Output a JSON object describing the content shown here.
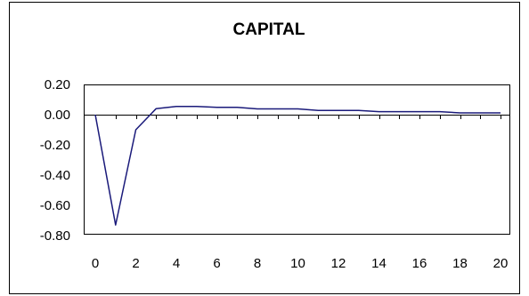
{
  "chart_data": {
    "type": "line",
    "title": "CAPITAL",
    "xlabel": "",
    "ylabel": "",
    "x": [
      0,
      1,
      2,
      3,
      4,
      5,
      6,
      7,
      8,
      9,
      10,
      11,
      12,
      13,
      14,
      15,
      16,
      17,
      18,
      19,
      20
    ],
    "series": [
      {
        "values": [
          0.0,
          -0.73,
          -0.1,
          0.04,
          0.055,
          0.055,
          0.048,
          0.048,
          0.038,
          0.038,
          0.038,
          0.028,
          0.028,
          0.028,
          0.02,
          0.02,
          0.02,
          0.02,
          0.012,
          0.012,
          0.012
        ],
        "color": "#1a1a7a"
      }
    ],
    "xlim": [
      0,
      20
    ],
    "ylim": [
      -0.8,
      0.2
    ],
    "x_tick_labels": [
      "0",
      "2",
      "4",
      "6",
      "8",
      "10",
      "12",
      "14",
      "16",
      "18",
      "20"
    ],
    "y_tick_labels": [
      "0.20",
      "0.00",
      "-0.20",
      "-0.40",
      "-0.60",
      "-0.80"
    ],
    "grid": false,
    "legend": "none"
  }
}
